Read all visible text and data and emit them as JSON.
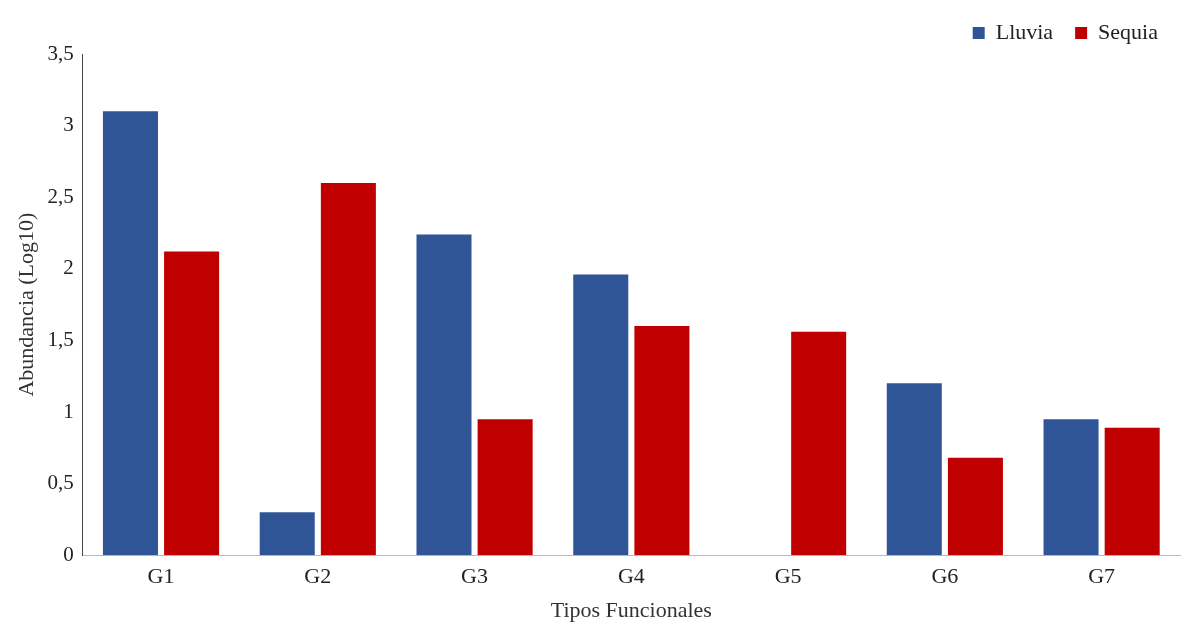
{
  "chart_data": {
    "type": "bar",
    "xlabel": "Tipos Funcionales",
    "ylabel": "Abundancia (Log10)",
    "categories": [
      "G1",
      "G2",
      "G3",
      "G4",
      "G5",
      "G6",
      "G7"
    ],
    "series": [
      {
        "name": "Lluvia",
        "color": "#2f5597",
        "values": [
          3.1,
          0.3,
          2.24,
          1.96,
          0,
          1.2,
          0.95
        ]
      },
      {
        "name": "Sequia",
        "color": "#c00000",
        "values": [
          2.12,
          2.6,
          0.95,
          1.6,
          1.56,
          0.68,
          0.89
        ]
      }
    ],
    "ylim": [
      0,
      3.5
    ],
    "yticks": [
      {
        "value": 0,
        "label": "0"
      },
      {
        "value": 0.5,
        "label": "0,5"
      },
      {
        "value": 1,
        "label": "1"
      },
      {
        "value": 1.5,
        "label": "1,5"
      },
      {
        "value": 2,
        "label": "2"
      },
      {
        "value": 2.5,
        "label": "2,5"
      },
      {
        "value": 3,
        "label": "3"
      },
      {
        "value": 3.5,
        "label": "3,5"
      }
    ],
    "grid": false,
    "legend": "top right"
  }
}
